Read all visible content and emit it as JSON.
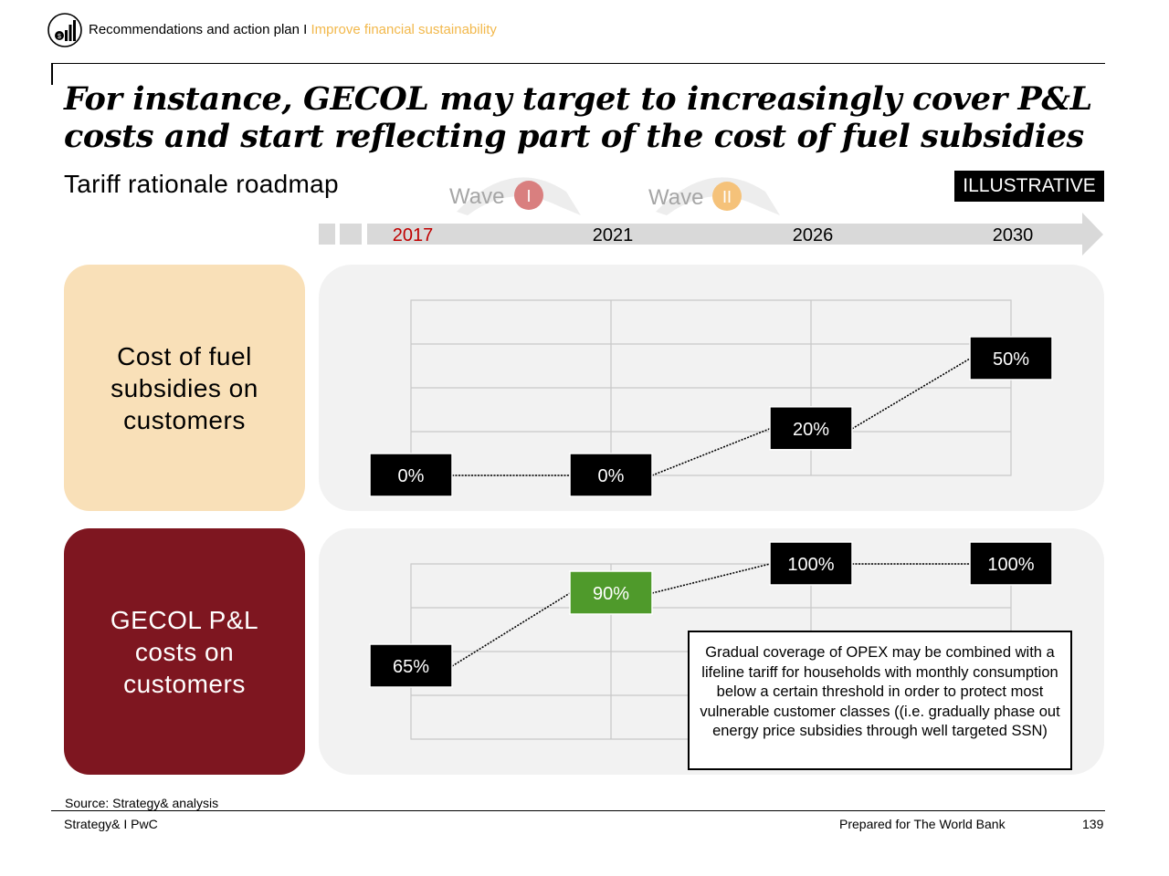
{
  "header": {
    "breadcrumb_main": "Recommendations and action plan I",
    "breadcrumb_highlight": "Improve financial sustainability",
    "icon": "money-bag-chart-icon"
  },
  "title": "For instance, GECOL may target to increasingly cover P&L costs and start reflecting part of the cost of fuel subsidies",
  "subtitle": "Tariff rationale roadmap",
  "badge": "ILLUSTRATIVE",
  "waves": [
    {
      "label": "Wave",
      "numeral": "I",
      "color": "#d97f7f"
    },
    {
      "label": "Wave",
      "numeral": "II",
      "color": "#f5c27a"
    }
  ],
  "timeline": {
    "years": [
      "2017",
      "2021",
      "2026",
      "2030"
    ],
    "highlight_color": "#c00000"
  },
  "colors": {
    "accent_orange": "#f2b84b",
    "card1_bg": "#f9e0b8",
    "card2_bg": "#7e1620",
    "highlight_green": "#4f9a2b"
  },
  "rows": [
    {
      "label": "Cost of fuel subsidies on customers"
    },
    {
      "label": "GECOL P&L costs on customers"
    }
  ],
  "chart_data": [
    {
      "type": "line",
      "x": [
        "2017",
        "2021",
        "2026",
        "2030"
      ],
      "values": [
        0,
        0,
        20,
        50
      ],
      "labels": [
        "0%",
        "0%",
        "20%",
        "50%"
      ],
      "ylim": [
        0,
        75
      ],
      "grid": true
    },
    {
      "type": "line",
      "x": [
        "2017",
        "2021",
        "2026",
        "2030"
      ],
      "values": [
        65,
        90,
        100,
        100
      ],
      "labels": [
        "65%",
        "90%",
        "100%",
        "100%"
      ],
      "highlight_index": 1,
      "ylim": [
        40,
        100
      ],
      "grid": true
    }
  ],
  "note": "Gradual coverage of OPEX may be combined with a lifeline tariff for households with monthly consumption below a certain threshold in order to protect most vulnerable customer classes ((i.e. gradually phase out energy price subsidies through well targeted SSN)",
  "source": "Source: Strategy& analysis",
  "footer": {
    "left": "Strategy& I PwC",
    "middle": "Prepared for The World Bank",
    "page": "139"
  }
}
